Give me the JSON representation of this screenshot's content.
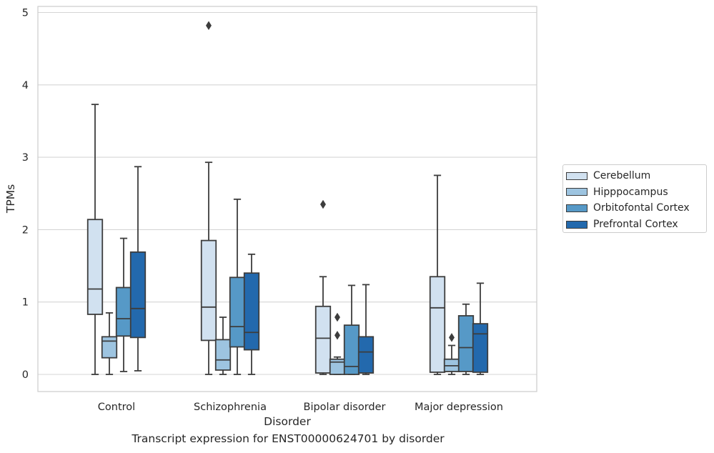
{
  "chart_data": {
    "type": "box",
    "title": "",
    "caption": "Transcript expression for ENST00000624701 by disorder",
    "xlabel": "Disorder",
    "ylabel": "TPMs",
    "ylim": [
      -0.23,
      5.09
    ],
    "yticks": [
      0,
      1,
      2,
      3,
      4,
      5
    ],
    "grid": true,
    "legend_position": "right",
    "categories": [
      "Control",
      "Schizophrenia",
      "Bipolar disorder",
      "Major depression"
    ],
    "series": [
      {
        "name": "Cerebellum",
        "color": "#d1e1f0",
        "boxes": [
          {
            "whislo": 0.0,
            "q1": 0.83,
            "med": 1.18,
            "q3": 2.14,
            "whishi": 3.73,
            "fliers": []
          },
          {
            "whislo": 0.0,
            "q1": 0.47,
            "med": 0.93,
            "q3": 1.85,
            "whishi": 2.93,
            "fliers": [
              4.82
            ]
          },
          {
            "whislo": 0.0,
            "q1": 0.02,
            "med": 0.5,
            "q3": 0.94,
            "whishi": 1.35,
            "fliers": [
              2.35
            ]
          },
          {
            "whislo": 0.0,
            "q1": 0.03,
            "med": 0.92,
            "q3": 1.35,
            "whishi": 2.75,
            "fliers": []
          }
        ]
      },
      {
        "name": "Hipppocampus",
        "color": "#9dc4e0",
        "boxes": [
          {
            "whislo": 0.0,
            "q1": 0.23,
            "med": 0.46,
            "q3": 0.52,
            "whishi": 0.85,
            "fliers": []
          },
          {
            "whislo": 0.0,
            "q1": 0.06,
            "med": 0.2,
            "q3": 0.48,
            "whishi": 0.79,
            "fliers": []
          },
          {
            "whislo": 0.0,
            "q1": 0.0,
            "med": 0.17,
            "q3": 0.21,
            "whishi": 0.24,
            "fliers": [
              0.79,
              0.54
            ]
          },
          {
            "whislo": 0.0,
            "q1": 0.04,
            "med": 0.12,
            "q3": 0.21,
            "whishi": 0.4,
            "fliers": [
              0.51
            ]
          }
        ]
      },
      {
        "name": "Orbitofontal Cortex",
        "color": "#5699c7",
        "boxes": [
          {
            "whislo": 0.04,
            "q1": 0.53,
            "med": 0.77,
            "q3": 1.2,
            "whishi": 1.88,
            "fliers": []
          },
          {
            "whislo": 0.0,
            "q1": 0.38,
            "med": 0.66,
            "q3": 1.34,
            "whishi": 2.42,
            "fliers": []
          },
          {
            "whislo": 0.0,
            "q1": 0.0,
            "med": 0.11,
            "q3": 0.68,
            "whishi": 1.23,
            "fliers": []
          },
          {
            "whislo": 0.0,
            "q1": 0.04,
            "med": 0.37,
            "q3": 0.81,
            "whishi": 0.97,
            "fliers": []
          }
        ]
      },
      {
        "name": "Prefrontal Cortex",
        "color": "#2369ad",
        "boxes": [
          {
            "whislo": 0.05,
            "q1": 0.51,
            "med": 0.91,
            "q3": 1.69,
            "whishi": 2.87,
            "fliers": []
          },
          {
            "whislo": 0.0,
            "q1": 0.34,
            "med": 0.58,
            "q3": 1.4,
            "whishi": 1.66,
            "fliers": []
          },
          {
            "whislo": 0.0,
            "q1": 0.02,
            "med": 0.31,
            "q3": 0.52,
            "whishi": 1.24,
            "fliers": []
          },
          {
            "whislo": 0.0,
            "q1": 0.03,
            "med": 0.56,
            "q3": 0.7,
            "whishi": 1.26,
            "fliers": []
          }
        ]
      }
    ]
  }
}
